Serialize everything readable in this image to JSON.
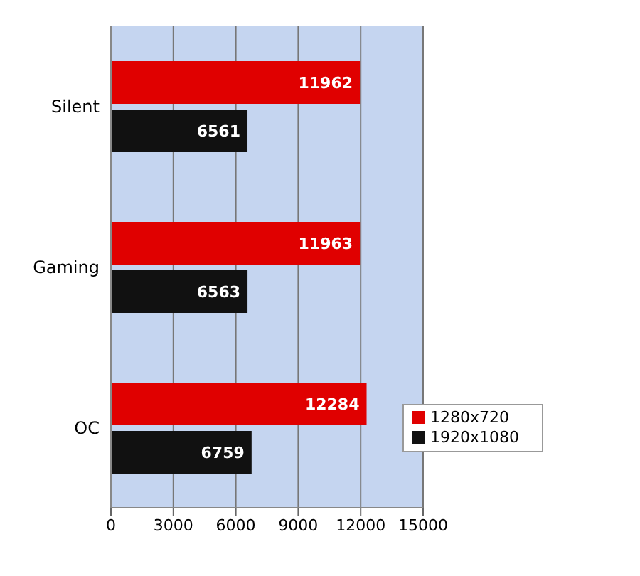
{
  "chart_data": {
    "type": "bar",
    "orientation": "horizontal",
    "categories": [
      "Silent",
      "Gaming",
      "OC"
    ],
    "series": [
      {
        "name": "1280x720",
        "color": "#e00000",
        "values": [
          11962,
          11963,
          12284
        ]
      },
      {
        "name": "1920x1080",
        "color": "#111111",
        "values": [
          6561,
          6563,
          6759
        ]
      }
    ],
    "xlim": [
      0,
      15000
    ],
    "xticks": [
      0,
      3000,
      6000,
      9000,
      12000,
      15000
    ],
    "grid": "x",
    "legend": "bottom right",
    "data_labels": true
  }
}
